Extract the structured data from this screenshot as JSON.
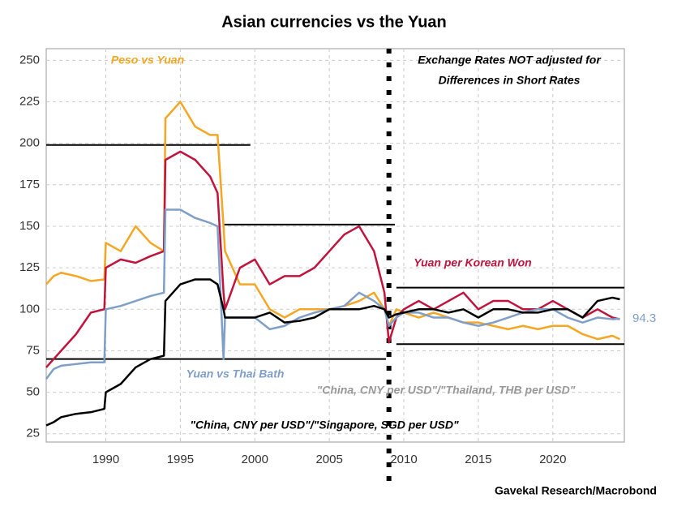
{
  "chart_data": {
    "type": "line",
    "title": "Asian currencies vs the Yuan",
    "source": "Gavekal Research/Macrobond",
    "x": [
      1986,
      1986.5,
      1987,
      1988,
      1989,
      1989.9,
      1990,
      1991,
      1992,
      1993,
      1993.9,
      1994,
      1995,
      1996,
      1997,
      1997.5,
      1997.9,
      1998,
      1999,
      2000,
      2001,
      2002,
      2003,
      2004,
      2005,
      2006,
      2007,
      2008,
      2008.7,
      2009,
      2009.5,
      2010,
      2011,
      2012,
      2013,
      2014,
      2015,
      2016,
      2017,
      2018,
      2019,
      2020,
      2021,
      2022,
      2023,
      2024,
      2024.5
    ],
    "series": [
      {
        "name": "Peso vs Yuan",
        "color": "#f5a623",
        "values": [
          115,
          120,
          122,
          120,
          117,
          118,
          140,
          135,
          150,
          140,
          135,
          215,
          225,
          210,
          205,
          205,
          150,
          135,
          115,
          115,
          100,
          95,
          100,
          100,
          100,
          102,
          105,
          110,
          100,
          90,
          100,
          98,
          95,
          98,
          95,
          92,
          92,
          90,
          88,
          90,
          88,
          90,
          90,
          85,
          82,
          84,
          82
        ]
      },
      {
        "name": "Yuan per Korean Won",
        "color": "#c0143c",
        "values": [
          65,
          70,
          75,
          85,
          98,
          100,
          125,
          130,
          128,
          132,
          135,
          190,
          195,
          190,
          180,
          170,
          110,
          100,
          125,
          130,
          115,
          120,
          120,
          125,
          135,
          145,
          150,
          135,
          110,
          80,
          95,
          100,
          105,
          100,
          105,
          110,
          100,
          105,
          105,
          100,
          100,
          105,
          100,
          95,
          100,
          95,
          94
        ]
      },
      {
        "name": "Yuan vs Thai Bath",
        "color": "#7f9fc9",
        "values": [
          58,
          64,
          66,
          67,
          68,
          68,
          100,
          102,
          105,
          108,
          110,
          160,
          160,
          155,
          152,
          150,
          70,
          95,
          95,
          95,
          88,
          90,
          95,
          98,
          100,
          102,
          110,
          105,
          100,
          90,
          95,
          98,
          98,
          95,
          95,
          92,
          90,
          92,
          95,
          98,
          100,
          100,
          95,
          92,
          95,
          94,
          94.3
        ]
      },
      {
        "name": "\"China, CNY per USD\"/\"Singapore, SGD per USD\"",
        "color": "#000000",
        "values": [
          30,
          32,
          35,
          37,
          38,
          40,
          50,
          55,
          65,
          70,
          72,
          105,
          115,
          118,
          118,
          115,
          100,
          95,
          95,
          95,
          98,
          92,
          93,
          95,
          100,
          100,
          100,
          102,
          100,
          95,
          97,
          98,
          100,
          100,
          98,
          100,
          95,
          100,
          100,
          98,
          98,
          100,
          100,
          95,
          105,
          107,
          106
        ]
      }
    ],
    "annotations": [
      {
        "text": "Exchange Rates NOT adjusted for",
        "color": "#000000"
      },
      {
        "text": "Differences in Short Rates",
        "color": "#000000"
      },
      {
        "text": "\"China, CNY per USD\"/\"Thailand, THB per USD\"",
        "color": "#999999"
      }
    ],
    "reference_lines": [
      {
        "y": 199,
        "x": [
          1986,
          1999.7
        ]
      },
      {
        "y": 151,
        "x": [
          1997.9,
          2009.4
        ]
      },
      {
        "y": 70,
        "x": [
          1986,
          2008.8
        ]
      },
      {
        "y": 113,
        "x": [
          2009.5,
          2024.8
        ]
      },
      {
        "y": 79,
        "x": [
          2009.5,
          2024.8
        ]
      }
    ],
    "vline": 2009,
    "xlim": [
      1986,
      2024.8
    ],
    "ylim": [
      20,
      257
    ],
    "xticks": [
      1990,
      1995,
      2000,
      2005,
      2010,
      2015,
      2020
    ],
    "yticks": [
      25,
      50,
      75,
      100,
      125,
      150,
      175,
      200,
      225,
      250
    ],
    "grid": true
  }
}
